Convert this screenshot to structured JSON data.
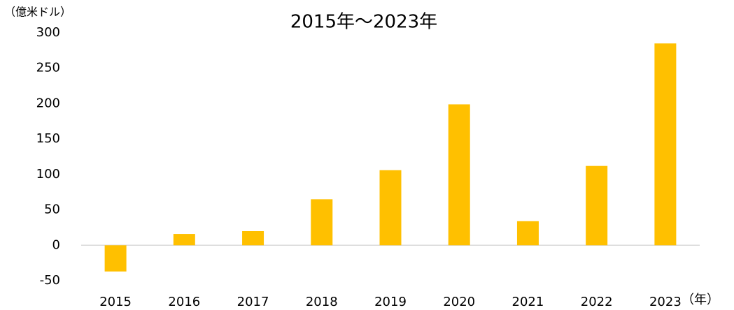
{
  "chart_data": {
    "type": "bar",
    "title": "2015年～2023年",
    "y_label": "（億米ドル）",
    "x_label": "（年）",
    "categories": [
      "2015",
      "2016",
      "2017",
      "2018",
      "2019",
      "2020",
      "2021",
      "2022",
      "2023"
    ],
    "values": [
      -37,
      16,
      20,
      65,
      106,
      199,
      34,
      112,
      285
    ],
    "color": "#ffc000",
    "ylim": [
      -50,
      300
    ],
    "yticks": [
      -50,
      0,
      50,
      100,
      150,
      200,
      250,
      300
    ],
    "negative_tick_color": "#ff0000",
    "grid": false
  }
}
